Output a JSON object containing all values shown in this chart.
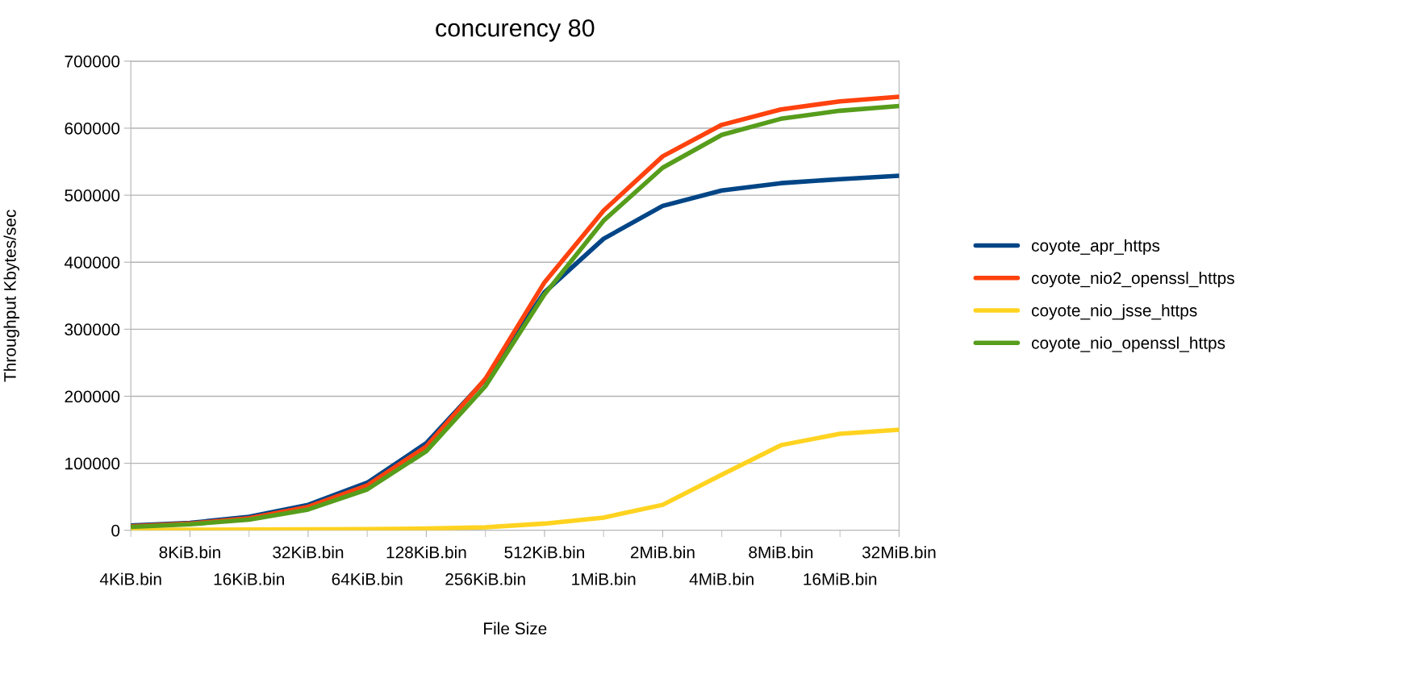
{
  "chart_data": {
    "type": "line",
    "title": "concurency 80",
    "xlabel": "File Size",
    "ylabel": "Throughput Kbytes/sec",
    "categories": [
      "4KiB.bin",
      "8KiB.bin",
      "16KiB.bin",
      "32KiB.bin",
      "64KiB.bin",
      "128KiB.bin",
      "256KiB.bin",
      "512KiB.bin",
      "1MiB.bin",
      "2MiB.bin",
      "4MiB.bin",
      "8MiB.bin",
      "16MiB.bin",
      "32MiB.bin"
    ],
    "series": [
      {
        "name": "coyote_apr_https",
        "color": "#004586",
        "values": [
          7000,
          11000,
          20000,
          38000,
          71000,
          130000,
          225000,
          355000,
          435000,
          484000,
          507000,
          518000,
          524000,
          529000
        ]
      },
      {
        "name": "coyote_nio2_openssl_https",
        "color": "#ff420e",
        "values": [
          6000,
          10000,
          18000,
          35000,
          67000,
          125000,
          226000,
          370000,
          477000,
          558000,
          605000,
          628000,
          640000,
          647000
        ]
      },
      {
        "name": "coyote_nio_jsse_https",
        "color": "#ffd320",
        "values": [
          500,
          700,
          1000,
          1300,
          1800,
          2500,
          4500,
          10000,
          19000,
          38000,
          83000,
          127000,
          144000,
          150000
        ]
      },
      {
        "name": "coyote_nio_openssl_https",
        "color": "#579d1c",
        "values": [
          5000,
          9000,
          16000,
          31000,
          61000,
          118000,
          215000,
          352000,
          462000,
          541000,
          590000,
          614000,
          626000,
          633000
        ]
      }
    ],
    "ylim": [
      0,
      700000
    ],
    "yticks": [
      0,
      100000,
      200000,
      300000,
      400000,
      500000,
      600000,
      700000
    ],
    "grid": "y",
    "legend": "right",
    "marker": "none",
    "line_style": "solid"
  }
}
